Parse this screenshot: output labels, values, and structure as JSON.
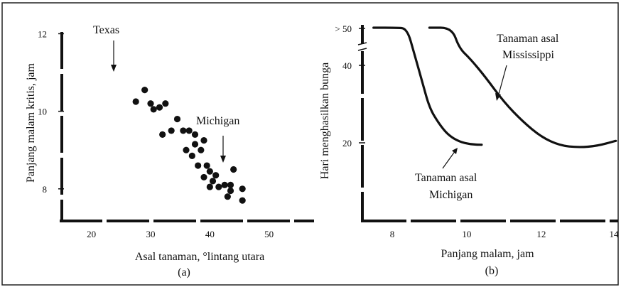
{
  "chart_data": [
    {
      "type": "scatter",
      "xlabel": "Asal tanaman, °lintang utara",
      "ylabel": "Panjang malam kritis, jam",
      "caption": "(a)",
      "xlim": [
        15,
        57
      ],
      "ylim": [
        7.3,
        12.1
      ],
      "x_ticks": [
        "20",
        "30",
        "40",
        "50"
      ],
      "y_ticks": [
        "8",
        "10",
        "12"
      ],
      "grid": false,
      "annotations": [
        "Texas",
        "Michigan"
      ],
      "points": [
        {
          "x": 27.5,
          "y": 10.25
        },
        {
          "x": 29.0,
          "y": 10.55
        },
        {
          "x": 30.0,
          "y": 10.2
        },
        {
          "x": 30.5,
          "y": 10.05
        },
        {
          "x": 31.5,
          "y": 10.1
        },
        {
          "x": 32.5,
          "y": 10.2
        },
        {
          "x": 32.0,
          "y": 9.4
        },
        {
          "x": 33.5,
          "y": 9.5
        },
        {
          "x": 34.5,
          "y": 9.8
        },
        {
          "x": 35.5,
          "y": 9.5
        },
        {
          "x": 36.5,
          "y": 9.5
        },
        {
          "x": 37.5,
          "y": 9.4
        },
        {
          "x": 36.0,
          "y": 9.0
        },
        {
          "x": 37.0,
          "y": 8.85
        },
        {
          "x": 37.5,
          "y": 9.15
        },
        {
          "x": 38.5,
          "y": 9.0
        },
        {
          "x": 39.0,
          "y": 9.25
        },
        {
          "x": 38.0,
          "y": 8.6
        },
        {
          "x": 39.5,
          "y": 8.6
        },
        {
          "x": 39.0,
          "y": 8.3
        },
        {
          "x": 40.0,
          "y": 8.45
        },
        {
          "x": 40.5,
          "y": 8.2
        },
        {
          "x": 41.0,
          "y": 8.35
        },
        {
          "x": 40.0,
          "y": 8.05
        },
        {
          "x": 41.5,
          "y": 8.05
        },
        {
          "x": 42.5,
          "y": 8.1
        },
        {
          "x": 43.5,
          "y": 8.1
        },
        {
          "x": 44.0,
          "y": 8.5
        },
        {
          "x": 43.5,
          "y": 7.95
        },
        {
          "x": 43.0,
          "y": 7.8
        },
        {
          "x": 45.5,
          "y": 8.0
        },
        {
          "x": 45.5,
          "y": 7.7
        }
      ]
    },
    {
      "type": "line",
      "xlabel": "Panjang malam, jam",
      "ylabel": "Hari menghasilkan bunga",
      "caption": "(b)",
      "xlim": [
        7.2,
        14.1
      ],
      "x_ticks": [
        "8",
        "10",
        "12",
        "14"
      ],
      "y_ticks": [
        "> 50",
        "40",
        "20"
      ],
      "y_axis_break": true,
      "grid": false,
      "series": [
        {
          "name": "Tanaman asal Michigan",
          "x": [
            7.5,
            8.1,
            8.4,
            8.6,
            8.8,
            9.0,
            9.25,
            9.5,
            9.8,
            10.1,
            10.4
          ],
          "y": [
            50.5,
            50.5,
            50.0,
            45.0,
            36.0,
            29.0,
            25.0,
            22.0,
            20.3,
            19.6,
            19.5
          ]
        },
        {
          "name": "Tanaman asal Mississippi",
          "x": [
            9.0,
            9.6,
            9.8,
            10.1,
            10.5,
            11.0,
            11.5,
            12.0,
            12.5,
            13.0,
            13.5,
            14.0
          ],
          "y": [
            50.5,
            50.5,
            48.0,
            43.0,
            37.0,
            30.5,
            25.5,
            21.5,
            19.3,
            18.8,
            19.2,
            20.5
          ]
        }
      ]
    }
  ]
}
